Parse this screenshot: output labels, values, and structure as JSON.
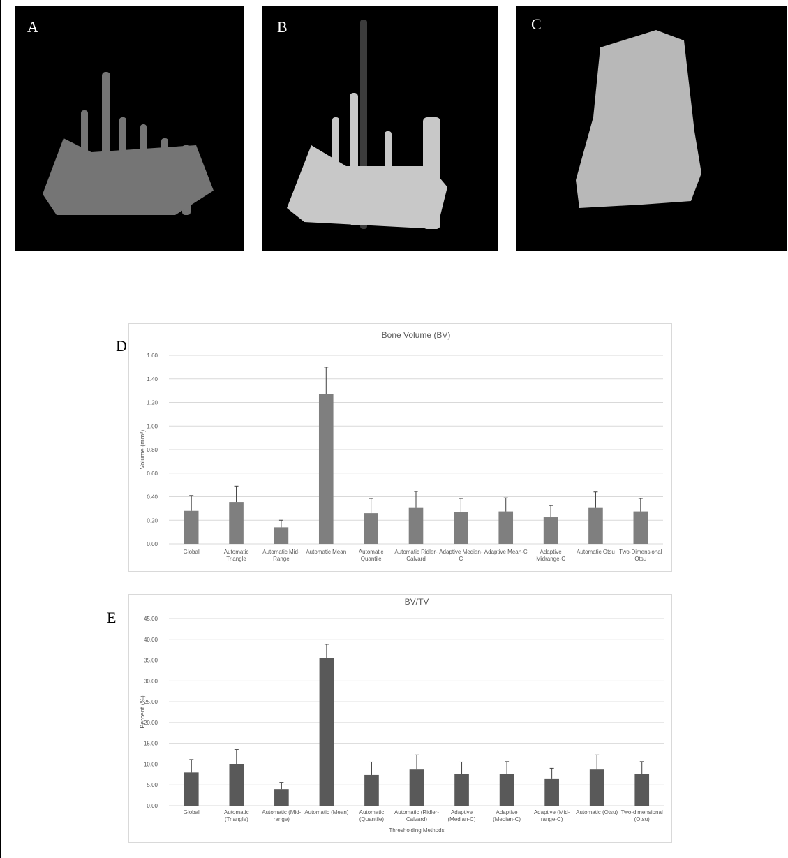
{
  "panels": [
    {
      "label": "A"
    },
    {
      "label": "B"
    },
    {
      "label": "C"
    }
  ],
  "chart_data": [
    {
      "type": "bar",
      "panel_label": "D",
      "title": "Bone Volume (BV)",
      "y_label": "Volume (mm³)",
      "color": "#7f7f7f",
      "grid": true,
      "categories": [
        "Global",
        "Automatic Triangle",
        "Automatic Mid-Range",
        "Automatic Mean",
        "Automatic Quantile",
        "Automatic Ridler-Calvard",
        "Adaptive Median-C",
        "Adaptive Mean-C",
        "Adaptive Midrange-C",
        "Automatic Otsu",
        "Two-Dimensional Otsu"
      ],
      "values": [
        0.28,
        0.355,
        0.14,
        1.27,
        0.26,
        0.31,
        0.27,
        0.275,
        0.225,
        0.31,
        0.275
      ],
      "errors": [
        0.13,
        0.135,
        0.06,
        0.23,
        0.125,
        0.135,
        0.115,
        0.115,
        0.1,
        0.13,
        0.11
      ],
      "ylim": [
        0,
        1.6
      ],
      "yticks": [
        {
          "value": 0,
          "label": "0.00"
        },
        {
          "value": 0.2,
          "label": "0.20"
        },
        {
          "value": 0.4,
          "label": "0.40"
        },
        {
          "value": 0.6,
          "label": "0.60"
        },
        {
          "value": 0.8,
          "label": "0.80"
        },
        {
          "value": 1,
          "label": "1.00"
        },
        {
          "value": 1.2,
          "label": "1.20"
        },
        {
          "value": 1.4,
          "label": "1.40"
        },
        {
          "value": 1.6,
          "label": "1.60"
        }
      ]
    },
    {
      "type": "bar",
      "panel_label": "E",
      "title": "BV/TV",
      "y_label": "Percent (%)",
      "x_label": "Thresholding Methods",
      "color": "#595959",
      "grid": true,
      "categories": [
        "Global",
        "Automatic (Triangle)",
        "Automatic (Mid-range)",
        "Automatic (Mean)",
        "Automatic (Quantile)",
        "Automatic (Ridler-Calvard)",
        "Adaptive (Median-C)",
        "Adaptive (Median-C)",
        "Adaptive (Mid-range-C)",
        "Automatic (Otsu)",
        "Two-dimensional (Otsu)"
      ],
      "values": [
        8.0,
        10.0,
        4.0,
        35.5,
        7.4,
        8.7,
        7.6,
        7.7,
        6.4,
        8.7,
        7.7
      ],
      "errors": [
        3.1,
        3.5,
        1.6,
        3.3,
        3.1,
        3.5,
        2.9,
        2.9,
        2.6,
        3.5,
        2.9
      ],
      "ylim": [
        0,
        45
      ],
      "yticks": [
        {
          "value": 0,
          "label": "0.00"
        },
        {
          "value": 5,
          "label": "5.00"
        },
        {
          "value": 10,
          "label": "10.00"
        },
        {
          "value": 15,
          "label": "15.00"
        },
        {
          "value": 20,
          "label": "20.00"
        },
        {
          "value": 25,
          "label": "25.00"
        },
        {
          "value": 30,
          "label": "30.00"
        },
        {
          "value": 35,
          "label": "35.00"
        },
        {
          "value": 40,
          "label": "40.00"
        },
        {
          "value": 45,
          "label": "45.00"
        }
      ]
    }
  ]
}
